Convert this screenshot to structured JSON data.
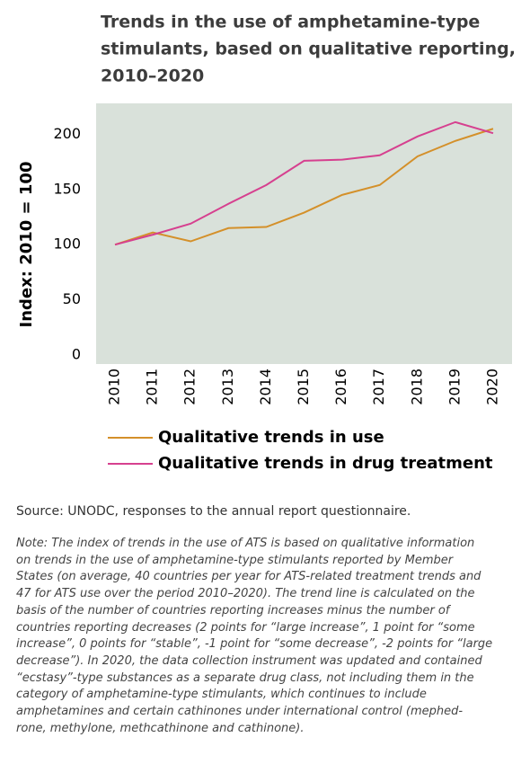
{
  "chart_data": {
    "type": "line",
    "title": [
      "Trends in the use of amphetamine-type",
      "stimulants, based on qualitative reporting,",
      "2010–2020"
    ],
    "y_label": "Index: 2010 = 100",
    "categories": [
      "2010",
      "2011",
      "2012",
      "2013",
      "2014",
      "2015",
      "2016",
      "2017",
      "2018",
      "2019",
      "2020"
    ],
    "series": [
      {
        "name": "Qualitative trends in use",
        "color": "#d4902a",
        "values": [
          100,
          111,
          103,
          115,
          116,
          129,
          145,
          154,
          180,
          194,
          205
        ]
      },
      {
        "name": "Qualitative trends in drug treatment",
        "color": "#d6408f",
        "values": [
          100,
          109,
          119,
          137,
          154,
          176,
          177,
          181,
          198,
          211,
          201
        ]
      }
    ],
    "ylim": [
      0,
      228
    ],
    "yticks": [
      0,
      50,
      100,
      150,
      200
    ],
    "grid": false,
    "background": "#d9e1da"
  },
  "source": "Source: UNODC, responses to the annual report questionnaire.",
  "note": [
    "Note: The index of trends in the use of ATS is based on qualitative information",
    "on trends in the use of amphetamine-type stimulants reported by Member",
    "States (on average, 40 countries per year for ATS-related treatment trends and",
    "47 for ATS use over the period 2010–2020). The trend line is calculated on the",
    "basis of the number of countries reporting increases minus the number of",
    "countries reporting decreases (2 points for “large increase”, 1 point for “some",
    "increase”, 0 points for “stable”, -1 point for “some decrease”, -2 points for “large",
    "decrease”). In 2020, the data collection instrument was updated and contained",
    "“ecstasy”-type substances as a separate drug class, not including them in the",
    "category of amphetamine-type stimulants, which continues to include",
    "amphetamines and certain cathinones under international control (mephed-",
    "rone, methylone, methcathinone and cathinone)."
  ]
}
